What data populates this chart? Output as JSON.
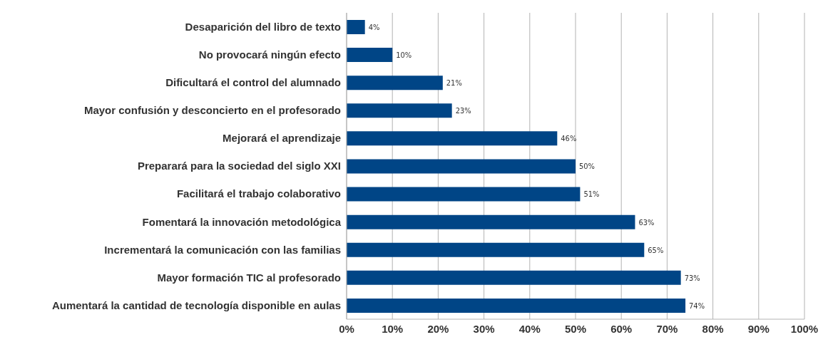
{
  "chart_data": {
    "type": "bar",
    "orientation": "horizontal",
    "categories": [
      "Desaparición del libro de texto",
      "No provocará ningún efecto",
      "Dificultará el control del alumnado",
      "Mayor confusión y desconcierto en el profesorado",
      "Mejorará el aprendizaje",
      "Preparará para la sociedad del siglo XXI",
      "Facilitará el trabajo colaborativo",
      "Fomentará la innovación metodológica",
      "Incrementará la comunicación con las familias",
      "Mayor formación TIC al profesorado",
      "Aumentará la cantidad de tecnología disponible en aulas"
    ],
    "values": [
      4,
      10,
      21,
      23,
      46,
      50,
      51,
      63,
      65,
      73,
      74
    ],
    "value_labels": [
      "4%",
      "10%",
      "21%",
      "23%",
      "46%",
      "50%",
      "51%",
      "63%",
      "65%",
      "73%",
      "74%"
    ],
    "color": "#004586",
    "xlim": [
      0,
      100
    ],
    "xticks": [
      {
        "value": 0,
        "label": "0%"
      },
      {
        "value": 10,
        "label": "10%"
      },
      {
        "value": 20,
        "label": "20%"
      },
      {
        "value": 30,
        "label": "30%"
      },
      {
        "value": 40,
        "label": "40%"
      },
      {
        "value": 50,
        "label": "50%"
      },
      {
        "value": 60,
        "label": "60%"
      },
      {
        "value": 70,
        "label": "70%"
      },
      {
        "value": 80,
        "label": "80%"
      },
      {
        "value": 90,
        "label": "90%"
      },
      {
        "value": 100,
        "label": "100%"
      }
    ],
    "grid": "x"
  }
}
